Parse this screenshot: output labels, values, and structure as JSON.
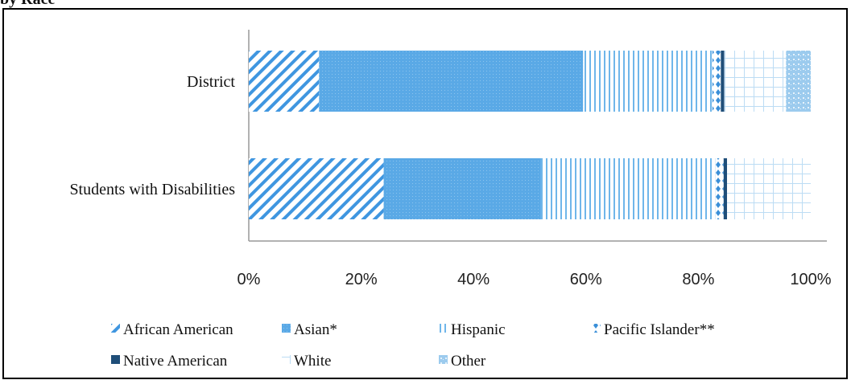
{
  "heading_fragment": "by Race",
  "chart_data": {
    "type": "bar",
    "orientation": "horizontal",
    "stacked": true,
    "categories": [
      "District",
      "Students with Disabilities"
    ],
    "series": [
      {
        "name": "African American",
        "values": [
          12.5,
          24
        ],
        "color": "#3f96e0",
        "pattern": "diagonal-hatch"
      },
      {
        "name": "Asian*",
        "values": [
          47,
          28
        ],
        "color": "#5aa9e6",
        "pattern": "dotted-fill"
      },
      {
        "name": "Hispanic",
        "values": [
          23,
          31
        ],
        "color": "#6fb6ea",
        "pattern": "vertical-lines"
      },
      {
        "name": "Pacific Islander**",
        "values": [
          1.5,
          1.5
        ],
        "color": "#3a8fd8",
        "pattern": "diamonds"
      },
      {
        "name": "Native American",
        "values": [
          0.6,
          0.6
        ],
        "color": "#1f4e79",
        "pattern": "solid"
      },
      {
        "name": "White",
        "values": [
          11,
          14.9
        ],
        "color": "#bcdcf4",
        "pattern": "grid"
      },
      {
        "name": "Other",
        "values": [
          4.4,
          0
        ],
        "color": "#9ccbee",
        "pattern": "speckle"
      }
    ],
    "xlim": [
      0,
      100
    ],
    "x_ticks": [
      "0%",
      "20%",
      "40%",
      "60%",
      "80%",
      "100%"
    ],
    "legend_position": "bottom",
    "grid": false
  }
}
